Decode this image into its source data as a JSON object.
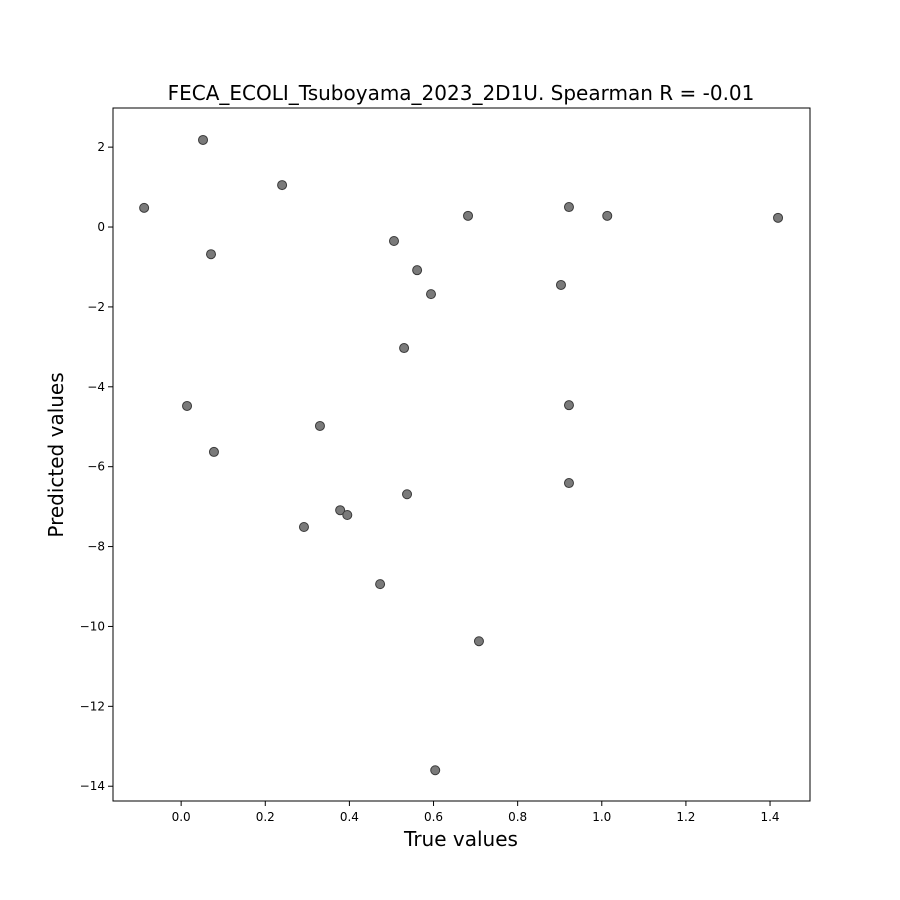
{
  "chart_data": {
    "type": "scatter",
    "title": "FECA_ECOLI_Tsuboyama_2023_2D1U. Spearman R = -0.01",
    "x_label": "True values",
    "y_label": "Predicted values",
    "color": "#7a7a7a",
    "edge_color": "#3a3a3a",
    "xlim": [
      -0.162,
      1.495
    ],
    "ylim": [
      -14.37,
      2.98
    ],
    "xticks": [
      {
        "value": 0,
        "label": "0.0"
      },
      0.2,
      0.4,
      0.6,
      0.8,
      {
        "value": 1,
        "label": "1.0"
      },
      1.2,
      1.4
    ],
    "yticks": [
      2,
      0,
      {
        "value": -2,
        "label": "−2"
      },
      {
        "value": -4,
        "label": "−4"
      },
      {
        "value": -6,
        "label": "−6"
      },
      {
        "value": -8,
        "label": "−8"
      },
      {
        "value": -10,
        "label": "−10"
      },
      {
        "value": -12,
        "label": "−12"
      },
      {
        "value": -14,
        "label": "−14"
      }
    ],
    "x": [
      -0.088,
      0.052,
      0.24,
      0.071,
      0.014,
      0.078,
      0.33,
      0.292,
      0.378,
      0.395,
      0.473,
      0.506,
      0.561,
      0.594,
      0.53,
      0.537,
      0.682,
      0.604,
      0.708,
      0.903,
      0.922,
      0.922,
      0.922,
      1.013,
      1.419
    ],
    "y": [
      0.48,
      2.18,
      1.05,
      -0.68,
      -4.48,
      -5.63,
      -4.98,
      -7.51,
      -7.09,
      -7.21,
      -8.94,
      -0.35,
      -1.08,
      -1.68,
      -3.03,
      -6.69,
      0.28,
      -13.6,
      -10.37,
      -1.45,
      0.5,
      -4.46,
      -6.41,
      0.28,
      0.23
    ]
  }
}
